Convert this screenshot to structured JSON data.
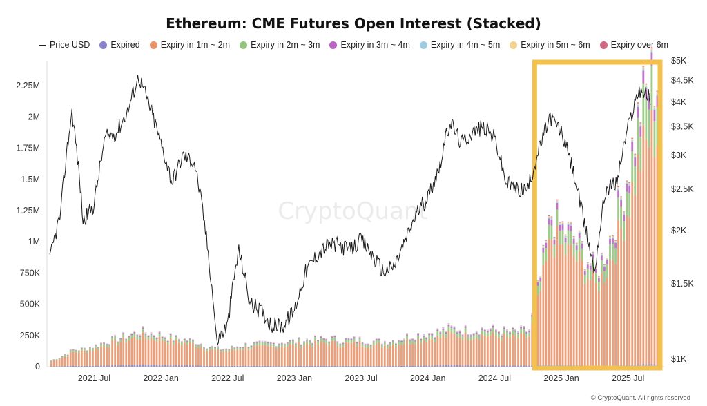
{
  "chart_data": {
    "type": "area",
    "title": "Ethereum: CME Futures Open Interest (Stacked)",
    "watermark": "CryptoQuant",
    "copyright": "© CryptoQuant. All rights reserved",
    "legend": [
      {
        "name": "Price USD",
        "color": "#222222",
        "marker": "line"
      },
      {
        "name": "Expired",
        "color": "#8a85c9",
        "marker": "dot"
      },
      {
        "name": "Expiry in 1m ~ 2m",
        "color": "#e8956b",
        "marker": "dot"
      },
      {
        "name": "Expiry in 2m ~ 3m",
        "color": "#93c47d",
        "marker": "dot"
      },
      {
        "name": "Expiry in 3m ~ 4m",
        "color": "#b865c4",
        "marker": "dot"
      },
      {
        "name": "Expiry in 4m ~ 5m",
        "color": "#9fcbe0",
        "marker": "dot"
      },
      {
        "name": "Expiry in 5m ~ 6m",
        "color": "#f1d28e",
        "marker": "dot"
      },
      {
        "name": "Expiry over 6m",
        "color": "#d06a82",
        "marker": "dot"
      }
    ],
    "x_ticks": [
      "2021 Jul",
      "2022 Jan",
      "2022 Jul",
      "2023 Jan",
      "2023 Jul",
      "2024 Jan",
      "2024 Jul",
      "2025 Jan",
      "2025 Jul"
    ],
    "x_range": [
      "2021-03",
      "2025-09"
    ],
    "y_left": {
      "ticks": [
        "0",
        "250K",
        "500K",
        "750K",
        "1M",
        "1.25M",
        "1.5M",
        "1.75M",
        "2M",
        "2.25M"
      ],
      "ylim": [
        0,
        2450000
      ]
    },
    "y_right": {
      "ticks": [
        "$1K",
        "$1.5K",
        "$2K",
        "$2.5K",
        "$3K",
        "$3.5K",
        "$4K",
        "$4.5K",
        "$5K"
      ],
      "scale": "log",
      "ylim": [
        960,
        5000
      ]
    },
    "highlight": {
      "from": "2024-10",
      "to": "2025-09",
      "color": "#f2c14e"
    },
    "x": [
      "2021-03",
      "2021-04",
      "2021-05",
      "2021-06",
      "2021-07",
      "2021-08",
      "2021-09",
      "2021-10",
      "2021-11",
      "2021-12",
      "2022-01",
      "2022-02",
      "2022-03",
      "2022-04",
      "2022-05",
      "2022-06",
      "2022-07",
      "2022-08",
      "2022-09",
      "2022-10",
      "2022-11",
      "2022-12",
      "2023-01",
      "2023-02",
      "2023-03",
      "2023-04",
      "2023-05",
      "2023-06",
      "2023-07",
      "2023-08",
      "2023-09",
      "2023-10",
      "2023-11",
      "2023-12",
      "2024-01",
      "2024-02",
      "2024-03",
      "2024-04",
      "2024-05",
      "2024-06",
      "2024-07",
      "2024-08",
      "2024-09",
      "2024-10",
      "2024-11",
      "2024-12",
      "2025-01",
      "2025-02",
      "2025-03",
      "2025-04",
      "2025-05",
      "2025-06",
      "2025-07",
      "2025-08",
      "2025-09"
    ],
    "price": [
      1700,
      2200,
      3800,
      2100,
      2300,
      3300,
      3400,
      3800,
      4600,
      3900,
      3200,
      2600,
      3000,
      2900,
      2000,
      1100,
      1200,
      1800,
      1350,
      1300,
      1200,
      1200,
      1300,
      1600,
      1750,
      1850,
      1850,
      1800,
      1900,
      1750,
      1600,
      1650,
      1900,
      2200,
      2400,
      2800,
      3600,
      3200,
      3400,
      3500,
      3300,
      2600,
      2500,
      2500,
      3100,
      3700,
      3400,
      2800,
      2100,
      1600,
      2500,
      2600,
      3500,
      4300,
      4100
    ],
    "series": [
      {
        "name": "Expired",
        "values": [
          3000,
          4000,
          8000,
          6000,
          8000,
          10000,
          12000,
          14000,
          18000,
          16000,
          14000,
          12000,
          12000,
          10000,
          8000,
          6000,
          6000,
          8000,
          8000,
          6000,
          5000,
          5000,
          6000,
          7000,
          7000,
          7000,
          6000,
          6000,
          6000,
          5000,
          5000,
          6000,
          8000,
          9000,
          10000,
          12000,
          14000,
          12000,
          12000,
          11000,
          10000,
          9000,
          9000,
          9000,
          14000,
          18000,
          16000,
          14000,
          10000,
          8000,
          10000,
          12000,
          16000,
          20000,
          22000
        ]
      },
      {
        "name": "Expiry in 1m ~ 2m",
        "values": [
          40000,
          70000,
          110000,
          120000,
          140000,
          170000,
          190000,
          210000,
          230000,
          220000,
          210000,
          190000,
          180000,
          170000,
          140000,
          120000,
          120000,
          140000,
          150000,
          150000,
          160000,
          170000,
          170000,
          180000,
          180000,
          190000,
          180000,
          180000,
          180000,
          170000,
          170000,
          180000,
          200000,
          210000,
          220000,
          230000,
          250000,
          240000,
          240000,
          250000,
          240000,
          230000,
          230000,
          240000,
          600000,
          1050000,
          950000,
          900000,
          780000,
          650000,
          800000,
          1050000,
          1350000,
          1700000,
          1900000
        ]
      },
      {
        "name": "Expiry in 2m ~ 3m",
        "values": [
          5000,
          10000,
          15000,
          15000,
          18000,
          20000,
          22000,
          25000,
          28000,
          26000,
          25000,
          22000,
          22000,
          20000,
          18000,
          15000,
          15000,
          18000,
          20000,
          20000,
          20000,
          22000,
          22000,
          24000,
          25000,
          26000,
          25000,
          25000,
          25000,
          24000,
          24000,
          25000,
          28000,
          30000,
          32000,
          34000,
          36000,
          35000,
          35000,
          36000,
          35000,
          34000,
          34000,
          35000,
          80000,
          120000,
          110000,
          100000,
          90000,
          80000,
          120000,
          160000,
          220000,
          300000,
          330000
        ]
      },
      {
        "name": "Expiry in 3m ~ 4m",
        "values": [
          2000,
          3000,
          4000,
          4000,
          5000,
          6000,
          7000,
          8000,
          9000,
          8000,
          8000,
          7000,
          7000,
          6000,
          5000,
          5000,
          5000,
          6000,
          6000,
          6000,
          6000,
          7000,
          7000,
          7000,
          8000,
          8000,
          8000,
          8000,
          8000,
          8000,
          8000,
          8000,
          9000,
          10000,
          10000,
          11000,
          12000,
          12000,
          12000,
          12000,
          12000,
          11000,
          11000,
          12000,
          30000,
          50000,
          45000,
          40000,
          35000,
          30000,
          40000,
          55000,
          70000,
          90000,
          100000
        ]
      },
      {
        "name": "Expiry in 4m ~ 5m",
        "values": [
          1000,
          1000,
          2000,
          2000,
          2000,
          3000,
          3000,
          3000,
          4000,
          4000,
          3000,
          3000,
          3000,
          3000,
          2000,
          2000,
          2000,
          2000,
          3000,
          3000,
          3000,
          3000,
          3000,
          3000,
          3000,
          3000,
          3000,
          3000,
          3000,
          3000,
          3000,
          3000,
          4000,
          4000,
          4000,
          4000,
          5000,
          5000,
          5000,
          5000,
          5000,
          5000,
          5000,
          5000,
          8000,
          12000,
          11000,
          10000,
          9000,
          8000,
          10000,
          12000,
          14000,
          16000,
          18000
        ]
      },
      {
        "name": "Expiry in 5m ~ 6m",
        "values": [
          1000,
          1000,
          1000,
          2000,
          2000,
          2000,
          2000,
          3000,
          3000,
          3000,
          3000,
          2000,
          2000,
          2000,
          2000,
          2000,
          2000,
          2000,
          2000,
          2000,
          2000,
          2000,
          2000,
          2000,
          2000,
          2000,
          2000,
          2000,
          2000,
          2000,
          2000,
          2000,
          3000,
          3000,
          3000,
          3000,
          3000,
          3000,
          3000,
          3000,
          3000,
          3000,
          3000,
          3000,
          6000,
          8000,
          8000,
          7000,
          6000,
          6000,
          7000,
          9000,
          10000,
          12000,
          14000
        ]
      },
      {
        "name": "Expiry over 6m",
        "values": [
          0,
          0,
          1000,
          1000,
          1000,
          1000,
          1000,
          1000,
          2000,
          2000,
          2000,
          1000,
          1000,
          1000,
          1000,
          1000,
          1000,
          1000,
          1000,
          1000,
          1000,
          1000,
          1000,
          1000,
          1000,
          1000,
          1000,
          1000,
          1000,
          1000,
          1000,
          1000,
          2000,
          2000,
          2000,
          2000,
          2000,
          2000,
          2000,
          2000,
          2000,
          2000,
          2000,
          2000,
          4000,
          6000,
          6000,
          5000,
          4000,
          4000,
          5000,
          6000,
          7000,
          8000,
          9000
        ]
      }
    ]
  }
}
